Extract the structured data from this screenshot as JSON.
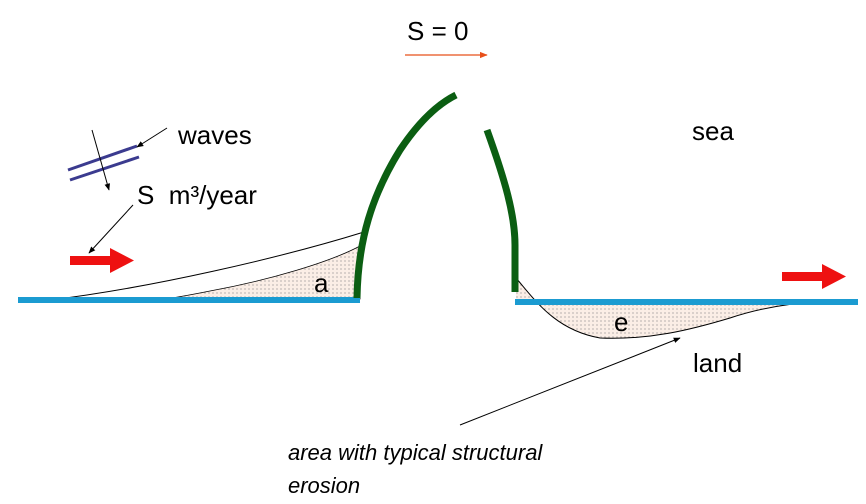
{
  "labels": {
    "s_zero": "S = 0",
    "waves": "waves",
    "s_rate": "S  m³/year",
    "sea": "sea",
    "land": "land",
    "accretion": "a",
    "erosion": "e",
    "note_line1": "area with typical structural",
    "note_line2": "erosion"
  },
  "colors": {
    "shoreline": "#1b9bd1",
    "groyne": "#0b5e12",
    "transport_arrow": "#ee1111",
    "bypass_arrow": "#e8501a",
    "waves": "#3b3b8f"
  }
}
